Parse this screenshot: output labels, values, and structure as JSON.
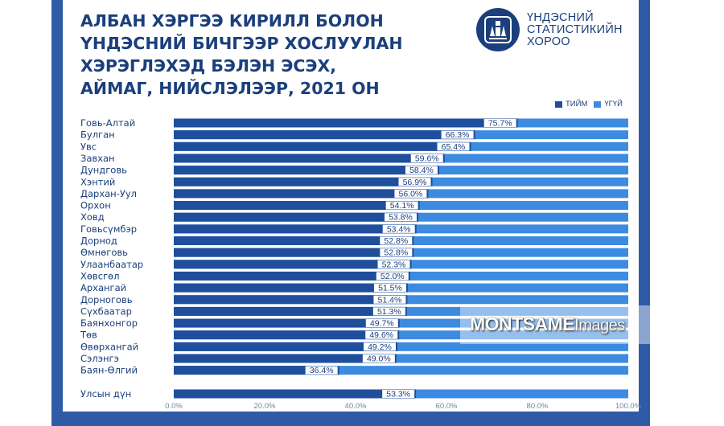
{
  "title": {
    "lines": [
      "АЛБАН ХЭРГЭЭ КИРИЛЛ БОЛОН",
      "ҮНДЭСНИЙ БИЧГЭЭР ХОСЛУУЛАН",
      "ХЭРЭГЛЭХЭД БЭЛЭН ЭСЭХ,",
      "АЙМАГ, НИЙСЛЭЛЭЭР, 2021 ОН"
    ]
  },
  "logo": {
    "lines": [
      "ҮНДЭСНИЙ",
      "СТАТИСТИКИЙН",
      "ХОРОО"
    ]
  },
  "watermark": {
    "brand": "MONTSAME",
    "suffix": "Images"
  },
  "colors": {
    "frame": "#2f5ba6",
    "title": "#1b3f7c",
    "yes": "#1f4e9c",
    "no": "#3d8be0"
  },
  "chart_data": {
    "type": "bar",
    "orientation": "horizontal",
    "stacked": true,
    "legend": [
      "ТИЙМ",
      "ҮГҮЙ"
    ],
    "legend_position": "top-right",
    "categories": [
      "Говь-Алтай",
      "Булган",
      "Увс",
      "Завхан",
      "Дундговь",
      "Хэнтий",
      "Дархан-Уул",
      "Орхон",
      "Ховд",
      "Говьсүмбэр",
      "Дорнод",
      "Өмнөговь",
      "Улаанбаатар",
      "Хөвсгөл",
      "Архангай",
      "Дорноговь",
      "Сүхбаатар",
      "Баянхонгор",
      "Төв",
      "Өвөрхангай",
      "Сэлэнгэ",
      "Баян-Өлгий"
    ],
    "yes_values": [
      75.7,
      66.3,
      65.4,
      59.6,
      58.4,
      56.9,
      56.0,
      54.1,
      53.8,
      53.4,
      52.8,
      52.8,
      52.3,
      52.0,
      51.5,
      51.4,
      51.3,
      49.7,
      49.6,
      49.2,
      49.0,
      36.4
    ],
    "yes_labels": [
      "75.7%",
      "66.3%",
      "65.4%",
      "59.6%",
      "58.4%",
      "56.9%",
      "56.0%",
      "54.1%",
      "53.8%",
      "53.4%",
      "52.8%",
      "52.8%",
      "52.3%",
      "52.0%",
      "51.5%",
      "51.4%",
      "51.3%",
      "49.7%",
      "49.6%",
      "49.2%",
      "49.0%",
      "36.4%"
    ],
    "total": {
      "category": "Улсын дүн",
      "yes_value": 53.3,
      "label": "53.3%"
    },
    "xlim": [
      0,
      100
    ],
    "xticks": [
      0,
      20,
      40,
      60,
      80,
      100
    ],
    "xtick_labels": [
      "0.0%",
      "20.0%",
      "40.0%",
      "60.0%",
      "80.0%",
      "100.0%"
    ],
    "grid": false
  }
}
